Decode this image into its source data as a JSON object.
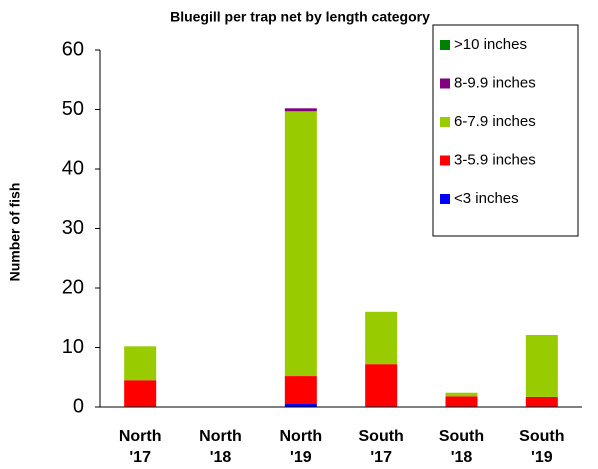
{
  "chart_data": {
    "type": "stacked_bar",
    "title": "Bluegill per trap net by length category",
    "y_label": "Number of fish",
    "categories": [
      [
        "North",
        "'17"
      ],
      [
        "North",
        "'18"
      ],
      [
        "North",
        "'19"
      ],
      [
        "South",
        "'17"
      ],
      [
        "South",
        "'18"
      ],
      [
        "South",
        "'19"
      ]
    ],
    "series": [
      {
        "name": "<3 inches",
        "color": "#0000ff",
        "values": [
          0.1,
          0,
          0.5,
          0.1,
          0.1,
          0.1
        ]
      },
      {
        "name": "3-5.9 inches",
        "color": "#ff0000",
        "values": [
          4.4,
          0,
          4.7,
          7.1,
          1.7,
          1.6
        ]
      },
      {
        "name": "6-7.9 inches",
        "color": "#99cc00",
        "values": [
          5.7,
          0,
          44.5,
          8.8,
          0.6,
          10.4
        ]
      },
      {
        "name": "8-9.9 inches",
        "color": "#800080",
        "values": [
          0,
          0,
          0.5,
          0,
          0,
          0
        ]
      },
      {
        "name": ">10 inches",
        "color": "#008000",
        "values": [
          0,
          0,
          0,
          0,
          0,
          0
        ]
      }
    ],
    "ylim": [
      0,
      60
    ],
    "yticks": [
      0,
      10,
      20,
      30,
      40,
      50,
      60
    ],
    "grid": false,
    "legend": "upper right"
  }
}
